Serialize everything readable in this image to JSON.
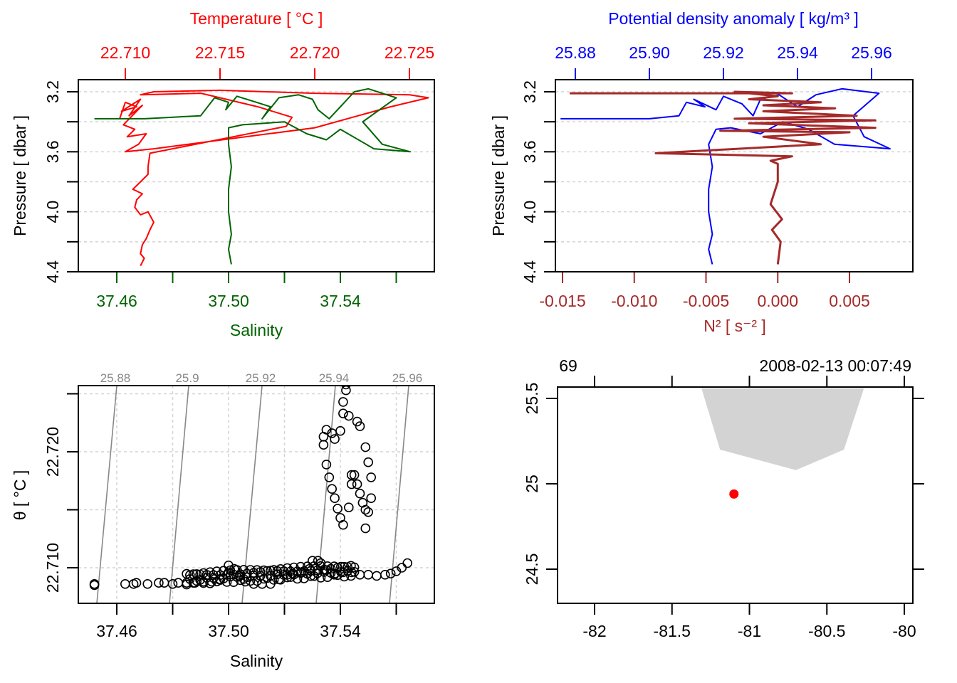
{
  "figure": "CTD profile summary (oce-style)",
  "colors": {
    "temperature": "#ff0000",
    "salinity": "#006400",
    "density": "#0000ff",
    "n2": "#a52a2a",
    "isopycnal": "#888888",
    "grid": "#d3d3d3",
    "coastline_fill": "#d3d3d3",
    "station": "#ff0000",
    "axis": "#000000"
  },
  "chart_data": [
    {
      "id": "panel-temperature-salinity-profile",
      "type": "line",
      "title": "",
      "top_axis_label": "Temperature [ °C ]",
      "bottom_axis_label": "Salinity",
      "ylabel": "Pressure [ dbar ]",
      "y_reversed": true,
      "ylim": [
        3.2,
        4.4
      ],
      "y_ticks": [
        3.2,
        3.4,
        3.6,
        3.8,
        4.0,
        4.2,
        4.4
      ],
      "y_tick_labels": [
        "3.2",
        "",
        "3.6",
        "",
        "4.0",
        "",
        "4.4"
      ],
      "top_ticks": [
        22.71,
        22.715,
        22.72,
        22.725
      ],
      "top_tick_labels": [
        "22.710",
        "22.715",
        "22.720",
        "22.725"
      ],
      "bottom_ticks": [
        37.46,
        37.48,
        37.5,
        37.52,
        37.54,
        37.56
      ],
      "bottom_tick_labels": [
        "37.46",
        "",
        "37.50",
        "",
        "37.54",
        ""
      ],
      "grid": true,
      "series": [
        {
          "name": "Temperature",
          "axis": "top",
          "points": [
            [
              22.7097,
              3.38
            ],
            [
              22.71,
              3.27
            ],
            [
              22.7106,
              3.3
            ],
            [
              22.7098,
              3.33
            ],
            [
              22.7108,
              3.25
            ],
            [
              22.7102,
              3.36
            ],
            [
              22.7109,
              3.29
            ],
            [
              22.7099,
              3.42
            ],
            [
              22.7105,
              3.45
            ],
            [
              22.7101,
              3.5
            ],
            [
              22.7111,
              3.48
            ],
            [
              22.7107,
              3.55
            ],
            [
              22.71,
              3.6
            ],
            [
              22.7115,
              3.58
            ],
            [
              22.72,
              3.44
            ],
            [
              22.724,
              3.3
            ],
            [
              22.726,
              3.24
            ],
            [
              22.725,
              3.22
            ],
            [
              22.72,
              3.21
            ],
            [
              22.715,
              3.19
            ],
            [
              22.7115,
              3.2
            ],
            [
              22.7108,
              3.22
            ],
            [
              22.714,
              3.21
            ],
            [
              22.717,
              3.3
            ],
            [
              22.7188,
              3.37
            ],
            [
              22.7185,
              3.43
            ],
            [
              22.7113,
              3.61
            ],
            [
              22.7112,
              3.7
            ],
            [
              22.7112,
              3.75
            ],
            [
              22.7108,
              3.8
            ],
            [
              22.7104,
              3.85
            ],
            [
              22.7109,
              3.88
            ],
            [
              22.7106,
              3.92
            ],
            [
              22.7105,
              3.97
            ],
            [
              22.7108,
              4.02
            ],
            [
              22.7112,
              4.0
            ],
            [
              22.7115,
              4.07
            ],
            [
              22.7113,
              4.12
            ],
            [
              22.7111,
              4.18
            ],
            [
              22.7109,
              4.22
            ],
            [
              22.7108,
              4.28
            ],
            [
              22.711,
              4.31
            ],
            [
              22.7108,
              4.36
            ]
          ]
        },
        {
          "name": "Salinity",
          "axis": "bottom",
          "points": [
            [
              37.452,
              3.38
            ],
            [
              37.47,
              3.38
            ],
            [
              37.49,
              3.36
            ],
            [
              37.495,
              3.24
            ],
            [
              37.5,
              3.27
            ],
            [
              37.499,
              3.32
            ],
            [
              37.503,
              3.23
            ],
            [
              37.51,
              3.27
            ],
            [
              37.515,
              3.3
            ],
            [
              37.512,
              3.38
            ],
            [
              37.518,
              3.24
            ],
            [
              37.525,
              3.22
            ],
            [
              37.53,
              3.25
            ],
            [
              37.532,
              3.32
            ],
            [
              37.536,
              3.38
            ],
            [
              37.54,
              3.3
            ],
            [
              37.545,
              3.2
            ],
            [
              37.55,
              3.18
            ],
            [
              37.56,
              3.24
            ],
            [
              37.548,
              3.4
            ],
            [
              37.555,
              3.55
            ],
            [
              37.565,
              3.6
            ],
            [
              37.552,
              3.58
            ],
            [
              37.54,
              3.45
            ],
            [
              37.535,
              3.52
            ],
            [
              37.528,
              3.48
            ],
            [
              37.52,
              3.4
            ],
            [
              37.505,
              3.42
            ],
            [
              37.5,
              3.44
            ],
            [
              37.5,
              3.55
            ],
            [
              37.501,
              3.7
            ],
            [
              37.5,
              3.85
            ],
            [
              37.5,
              4.0
            ],
            [
              37.501,
              4.15
            ],
            [
              37.5,
              4.25
            ],
            [
              37.501,
              4.35
            ]
          ]
        }
      ]
    },
    {
      "id": "panel-density-n2-profile",
      "type": "line",
      "top_axis_label": "Potential density anomaly [ kg/m³ ]",
      "bottom_axis_label": "N² [ s⁻² ]",
      "ylabel": "Pressure [ dbar ]",
      "y_reversed": true,
      "ylim": [
        3.2,
        4.4
      ],
      "y_ticks": [
        3.2,
        3.4,
        3.6,
        3.8,
        4.0,
        4.2,
        4.4
      ],
      "y_tick_labels": [
        "3.2",
        "",
        "3.6",
        "",
        "4.0",
        "",
        "4.4"
      ],
      "top_ticks": [
        25.88,
        25.9,
        25.92,
        25.94,
        25.96
      ],
      "top_tick_labels": [
        "25.88",
        "25.90",
        "25.92",
        "25.94",
        "25.96"
      ],
      "bottom_ticks": [
        -0.015,
        -0.01,
        -0.005,
        0.0,
        0.005
      ],
      "bottom_tick_labels": [
        "-0.015",
        "-0.010",
        "-0.005",
        "0.000",
        "0.005"
      ],
      "grid": true,
      "series": [
        {
          "name": "Potential density anomaly",
          "axis": "top",
          "points": [
            [
              25.876,
              3.38
            ],
            [
              25.9,
              3.38
            ],
            [
              25.908,
              3.36
            ],
            [
              25.91,
              3.27
            ],
            [
              25.915,
              3.3
            ],
            [
              25.912,
              3.25
            ],
            [
              25.918,
              3.32
            ],
            [
              25.92,
              3.23
            ],
            [
              25.925,
              3.28
            ],
            [
              25.928,
              3.36
            ],
            [
              25.93,
              3.25
            ],
            [
              25.935,
              3.22
            ],
            [
              25.94,
              3.3
            ],
            [
              25.945,
              3.22
            ],
            [
              25.952,
              3.18
            ],
            [
              25.962,
              3.21
            ],
            [
              25.955,
              3.36
            ],
            [
              25.958,
              3.5
            ],
            [
              25.965,
              3.58
            ],
            [
              25.95,
              3.55
            ],
            [
              25.943,
              3.45
            ],
            [
              25.936,
              3.4
            ],
            [
              25.93,
              3.48
            ],
            [
              25.922,
              3.44
            ],
            [
              25.918,
              3.45
            ],
            [
              25.916,
              3.55
            ],
            [
              25.917,
              3.7
            ],
            [
              25.916,
              3.85
            ],
            [
              25.916,
              4.0
            ],
            [
              25.917,
              4.15
            ],
            [
              25.916,
              4.25
            ],
            [
              25.917,
              4.35
            ]
          ]
        },
        {
          "name": "N²",
          "axis": "bottom",
          "points": [
            [
              -0.0145,
              3.21
            ],
            [
              0.001,
              3.21
            ],
            [
              -0.003,
              3.2
            ],
            [
              0.0,
              3.23
            ],
            [
              -0.002,
              3.25
            ],
            [
              0.003,
              3.27
            ],
            [
              -0.001,
              3.29
            ],
            [
              0.004,
              3.31
            ],
            [
              -0.001,
              3.33
            ],
            [
              0.0055,
              3.36
            ],
            [
              -0.003,
              3.38
            ],
            [
              0.0068,
              3.39
            ],
            [
              -0.002,
              3.41
            ],
            [
              0.0068,
              3.44
            ],
            [
              -0.004,
              3.46
            ],
            [
              0.005,
              3.47
            ],
            [
              -0.001,
              3.5
            ],
            [
              0.003,
              3.55
            ],
            [
              -0.0085,
              3.61
            ],
            [
              0.001,
              3.63
            ],
            [
              -0.0005,
              3.66
            ],
            [
              0.0,
              3.68
            ],
            [
              0.0,
              3.8
            ],
            [
              -0.0005,
              3.95
            ],
            [
              0.0003,
              4.05
            ],
            [
              -0.0004,
              4.12
            ],
            [
              0.0002,
              4.2
            ],
            [
              0.0,
              4.35
            ]
          ]
        }
      ]
    },
    {
      "id": "panel-ts-diagram",
      "type": "scatter",
      "xlabel": "Salinity",
      "ylabel": "θ [ °C ]",
      "xlim": [
        37.448,
        37.575
      ],
      "ylim": [
        22.707,
        22.7262
      ],
      "x_ticks": [
        37.46,
        37.48,
        37.5,
        37.52,
        37.54,
        37.56
      ],
      "x_tick_labels": [
        "37.46",
        "",
        "37.50",
        "",
        "37.54",
        ""
      ],
      "y_ticks": [
        22.71,
        22.715,
        22.72,
        22.725
      ],
      "y_tick_labels": [
        "22.710",
        "",
        "22.720",
        ""
      ],
      "isopycnals": [
        25.88,
        25.9,
        25.92,
        25.94,
        25.96
      ],
      "isopycnal_labels": [
        "25.88",
        "25.9",
        "25.92",
        "25.94",
        "25.96"
      ],
      "grid": true,
      "points": [
        [
          37.452,
          22.7085
        ],
        [
          37.452,
          22.7086
        ],
        [
          37.463,
          22.7086
        ],
        [
          37.466,
          22.7086
        ],
        [
          37.467,
          22.7087
        ],
        [
          37.471,
          22.7086
        ],
        [
          37.475,
          22.7087
        ],
        [
          37.477,
          22.7087
        ],
        [
          37.48,
          22.7086
        ],
        [
          37.482,
          22.7087
        ],
        [
          37.485,
          22.7087
        ],
        [
          37.488,
          22.7087
        ],
        [
          37.491,
          22.7088
        ],
        [
          37.494,
          22.7088
        ],
        [
          37.497,
          22.709
        ],
        [
          37.5,
          22.7096
        ],
        [
          37.5,
          22.7102
        ],
        [
          37.502,
          22.7099
        ],
        [
          37.504,
          22.7093
        ],
        [
          37.506,
          22.7088
        ],
        [
          37.509,
          22.7086
        ],
        [
          37.512,
          22.7086
        ],
        [
          37.515,
          22.7086
        ],
        [
          37.518,
          22.709
        ],
        [
          37.521,
          22.7094
        ],
        [
          37.523,
          22.7095
        ],
        [
          37.526,
          22.7096
        ],
        [
          37.529,
          22.7099
        ],
        [
          37.53,
          22.7106
        ],
        [
          37.532,
          22.7106
        ],
        [
          37.533,
          22.7104
        ],
        [
          37.535,
          22.7098
        ],
        [
          37.538,
          22.7095
        ],
        [
          37.541,
          22.7096
        ],
        [
          37.544,
          22.7096
        ],
        [
          37.547,
          22.7094
        ],
        [
          37.55,
          22.7094
        ],
        [
          37.553,
          22.7093
        ],
        [
          37.556,
          22.7094
        ],
        [
          37.558,
          22.7095
        ],
        [
          37.56,
          22.7097
        ],
        [
          37.562,
          22.71
        ],
        [
          37.564,
          22.7104
        ],
        [
          37.534,
          22.7213
        ],
        [
          37.535,
          22.7219
        ],
        [
          37.537,
          22.7216
        ],
        [
          37.538,
          22.7211
        ],
        [
          37.534,
          22.7206
        ],
        [
          37.535,
          22.7189
        ],
        [
          37.536,
          22.7178
        ],
        [
          37.537,
          22.7168
        ],
        [
          37.538,
          22.716
        ],
        [
          37.539,
          22.7151
        ],
        [
          37.54,
          22.7143
        ],
        [
          37.541,
          22.7137
        ],
        [
          37.54,
          22.7218
        ],
        [
          37.541,
          22.7233
        ],
        [
          37.541,
          22.7243
        ],
        [
          37.542,
          22.7253
        ],
        [
          37.542,
          22.7258
        ],
        [
          37.543,
          22.7231
        ],
        [
          37.546,
          22.7226
        ],
        [
          37.547,
          22.7222
        ],
        [
          37.549,
          22.7204
        ],
        [
          37.55,
          22.7191
        ],
        [
          37.551,
          22.7178
        ],
        [
          37.551,
          22.716
        ],
        [
          37.55,
          22.7148
        ],
        [
          37.549,
          22.7134
        ],
        [
          37.545,
          22.718
        ],
        [
          37.546,
          22.7172
        ],
        [
          37.547,
          22.7164
        ],
        [
          37.548,
          22.7156
        ],
        [
          37.549,
          22.715
        ],
        [
          37.543,
          22.7152
        ],
        [
          37.544,
          22.7172
        ],
        [
          37.544,
          22.718
        ]
      ]
    },
    {
      "id": "panel-station-map",
      "type": "scatter",
      "top_left_label": "69",
      "top_right_label": "2008-02-13 00:07:49",
      "xlim": [
        -82.22,
        -79.98
      ],
      "ylim": [
        24.29,
        25.56
      ],
      "x_ticks": [
        -82,
        -81.5,
        -81,
        -80.5,
        -80
      ],
      "x_tick_labels": [
        "-82",
        "-81.5",
        "-81",
        "-80.5",
        "-80"
      ],
      "y_ticks": [
        24.5,
        25,
        25.5
      ],
      "y_tick_labels": [
        "24.5",
        "25",
        "25.5"
      ],
      "coastline_polygon": [
        [
          -81.31,
          25.56
        ],
        [
          -81.19,
          25.2
        ],
        [
          -80.7,
          25.08
        ],
        [
          -80.39,
          25.2
        ],
        [
          -80.26,
          25.56
        ]
      ],
      "station": {
        "lon": -81.1,
        "lat": 24.94
      }
    }
  ]
}
